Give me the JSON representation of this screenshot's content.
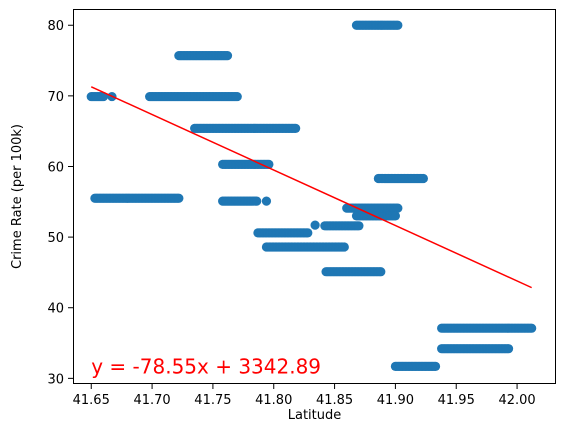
{
  "chart_data": {
    "type": "scatter",
    "xlabel": "Latitude",
    "ylabel": "Crime Rate (per 100k)",
    "xlim": [
      41.635,
      42.032
    ],
    "ylim": [
      29.2,
      82.3
    ],
    "xticks": [
      41.65,
      41.7,
      41.75,
      41.8,
      41.85,
      41.9,
      41.95,
      42.0
    ],
    "xtick_labels": [
      "41.65",
      "41.70",
      "41.75",
      "41.80",
      "41.85",
      "41.90",
      "41.95",
      "42.00"
    ],
    "yticks": [
      30,
      40,
      50,
      60,
      70,
      80
    ],
    "ytick_labels": [
      "30",
      "40",
      "50",
      "60",
      "70",
      "80"
    ],
    "grid": false,
    "marker_color": "#1f77b4",
    "line_color": "#ff0000",
    "clusters": [
      {
        "x_start": 41.65,
        "x_end": 41.66,
        "y": 69.9
      },
      {
        "x_start": 41.667,
        "x_end": 41.667,
        "y": 69.9
      },
      {
        "x_start": 41.653,
        "x_end": 41.722,
        "y": 55.5
      },
      {
        "x_start": 41.698,
        "x_end": 41.77,
        "y": 69.9
      },
      {
        "x_start": 41.722,
        "x_end": 41.762,
        "y": 75.7
      },
      {
        "x_start": 41.735,
        "x_end": 41.818,
        "y": 65.4
      },
      {
        "x_start": 41.758,
        "x_end": 41.796,
        "y": 60.3
      },
      {
        "x_start": 41.758,
        "x_end": 41.786,
        "y": 55.1
      },
      {
        "x_start": 41.794,
        "x_end": 41.794,
        "y": 55.1
      },
      {
        "x_start": 41.787,
        "x_end": 41.828,
        "y": 50.6
      },
      {
        "x_start": 41.834,
        "x_end": 41.834,
        "y": 51.7
      },
      {
        "x_start": 41.794,
        "x_end": 41.858,
        "y": 48.6
      },
      {
        "x_start": 41.843,
        "x_end": 41.888,
        "y": 45.1
      },
      {
        "x_start": 41.842,
        "x_end": 41.87,
        "y": 51.6
      },
      {
        "x_start": 41.86,
        "x_end": 41.902,
        "y": 54.1
      },
      {
        "x_start": 41.868,
        "x_end": 41.9,
        "y": 53.0
      },
      {
        "x_start": 41.868,
        "x_end": 41.902,
        "y": 80.0
      },
      {
        "x_start": 41.886,
        "x_end": 41.923,
        "y": 58.3
      },
      {
        "x_start": 41.9,
        "x_end": 41.933,
        "y": 31.7
      },
      {
        "x_start": 41.938,
        "x_end": 42.012,
        "y": 37.1
      },
      {
        "x_start": 41.938,
        "x_end": 41.993,
        "y": 34.2
      }
    ],
    "regression": {
      "slope": -78.55,
      "intercept": 3342.89,
      "x_start": 41.65,
      "x_end": 42.012,
      "equation_label": "y = -78.55x + 3342.89",
      "label_color": "#ff0000"
    }
  }
}
